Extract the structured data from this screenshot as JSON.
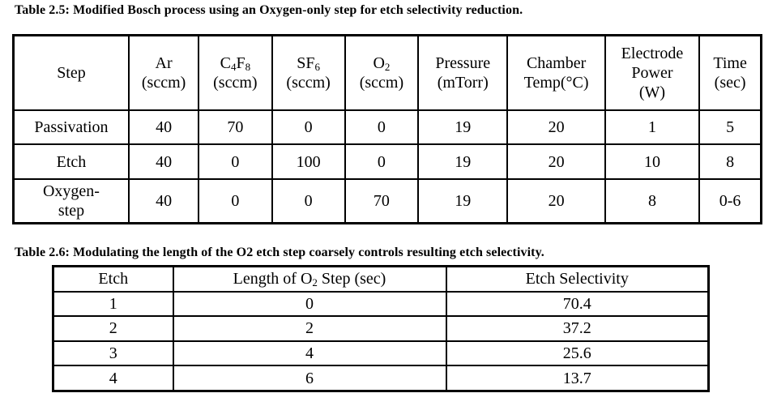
{
  "table1": {
    "caption": "Table 2.5: Modified Bosch process using an Oxygen-only step for etch selectivity reduction.",
    "header": {
      "step": "Step",
      "ar": "Ar",
      "ar_unit": "(sccm)",
      "c4f8_c": "C",
      "c4f8_4": "4",
      "c4f8_f": "F",
      "c4f8_8": "8",
      "c4f8_unit": "(sccm)",
      "sf6_s": "SF",
      "sf6_6": "6",
      "sf6_unit": "(sccm)",
      "o2_o": "O",
      "o2_2": "2",
      "o2_unit": "(sccm)",
      "pressure": "Pressure",
      "pressure_unit": "(mTorr)",
      "chamber_1": "Chamber",
      "chamber_2": "Temp(°C)",
      "electrode_1": "Electrode",
      "electrode_2": "Power",
      "electrode_3": "(W)",
      "time": "Time",
      "time_unit": "(sec)"
    },
    "rows": [
      {
        "step": "Passivation",
        "ar": "40",
        "c4f8": "70",
        "sf6": "0",
        "o2": "0",
        "pressure": "19",
        "temp": "20",
        "power": "1",
        "time": "5"
      },
      {
        "step": "Etch",
        "ar": "40",
        "c4f8": "0",
        "sf6": "100",
        "o2": "0",
        "pressure": "19",
        "temp": "20",
        "power": "10",
        "time": "8"
      },
      {
        "step_1": "Oxygen-",
        "step_2": "step",
        "ar": "40",
        "c4f8": "0",
        "sf6": "0",
        "o2": "70",
        "pressure": "19",
        "temp": "20",
        "power": "8",
        "time": "0-6"
      }
    ]
  },
  "table2": {
    "caption": "Table 2.6: Modulating the length of the O2 etch step coarsely controls resulting etch selectivity.",
    "header": {
      "etch": "Etch",
      "length_pre": "Length of O",
      "length_sub": "2",
      "length_post": " Step (sec)",
      "selectivity": "Etch Selectivity"
    },
    "rows": [
      {
        "etch": "1",
        "length": "0",
        "selectivity": "70.4"
      },
      {
        "etch": "2",
        "length": "2",
        "selectivity": "37.2"
      },
      {
        "etch": "3",
        "length": "4",
        "selectivity": "25.6"
      },
      {
        "etch": "4",
        "length": "6",
        "selectivity": "13.7"
      }
    ]
  }
}
